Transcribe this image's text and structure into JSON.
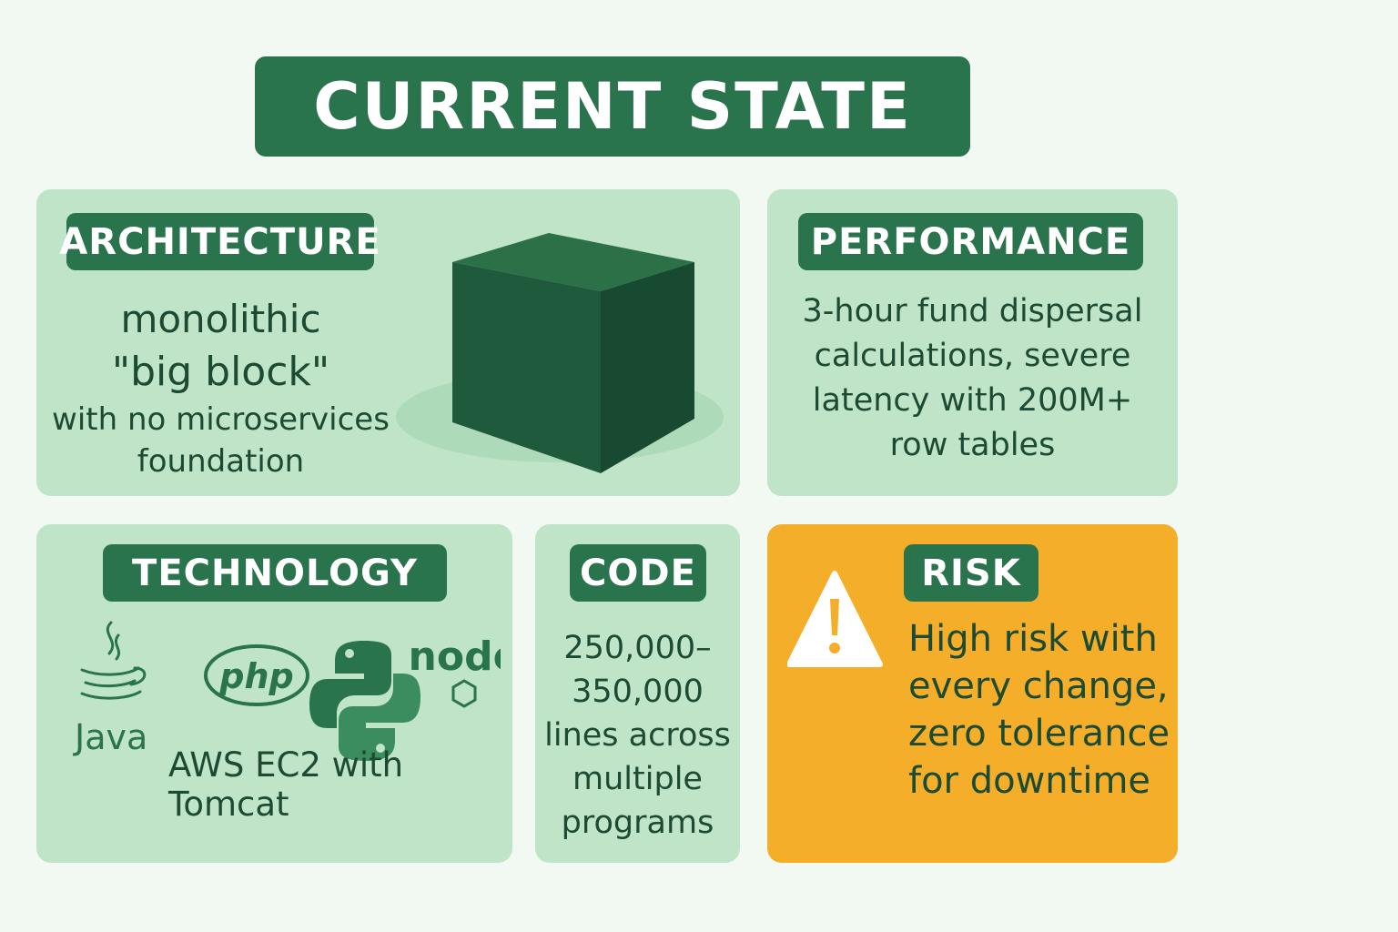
{
  "title": "CURRENT STATE",
  "architecture": {
    "label": "ARCHITECTURE",
    "line1": "monolithic",
    "line2": "\"big block\"",
    "line3": "with no microservices foundation"
  },
  "performance": {
    "label": "PERFORMANCE",
    "text": "3-hour fund dispersal calculations, severe latency with 200M+ row tables"
  },
  "technology": {
    "label": "TECHNOLOGY",
    "java_label": "Java",
    "php_label": "php",
    "node_label": "node",
    "platform": "AWS EC2 with Tomcat"
  },
  "code": {
    "label": "CODE",
    "text": "250,000–350,000 lines across multiple programs"
  },
  "risk": {
    "label": "RISK",
    "text": "High risk with every change, zero tolerance for downtime"
  },
  "colors": {
    "primary_green": "#2a744d",
    "card_green": "#bfe4c8",
    "risk_orange": "#f4ae2a",
    "text_dark": "#1d4a33"
  }
}
